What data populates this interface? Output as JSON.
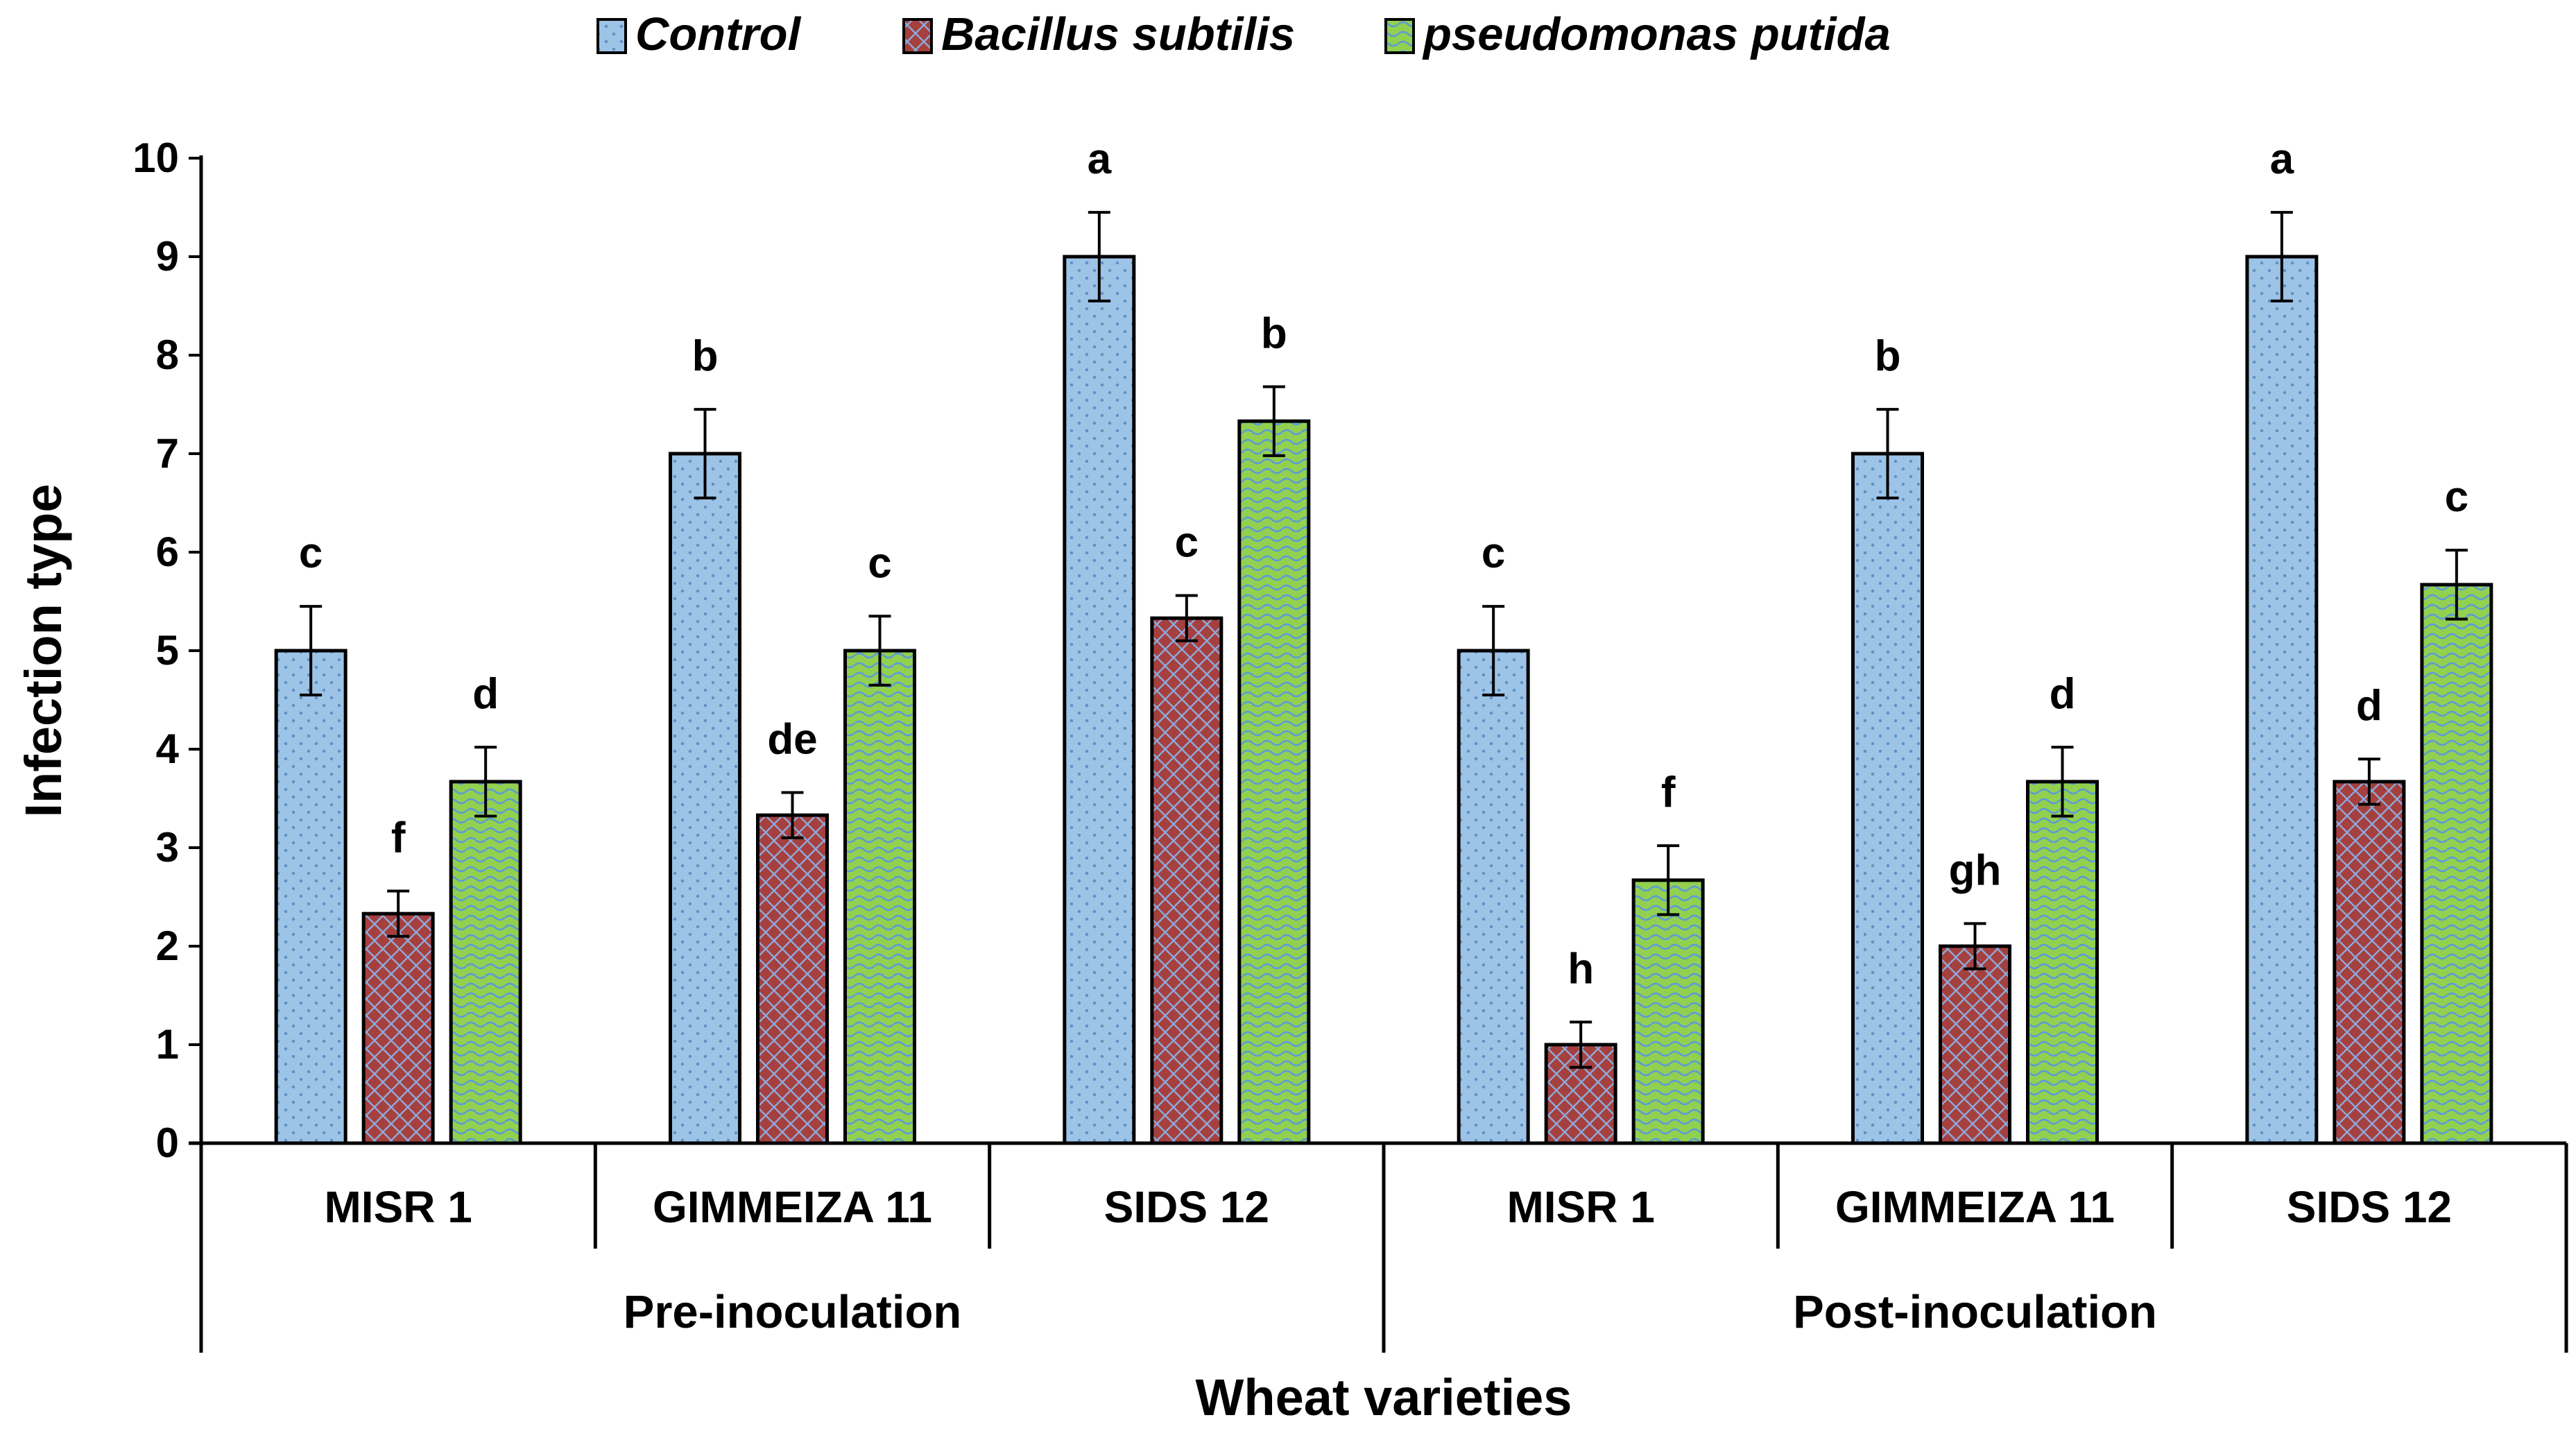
{
  "chart_data": {
    "type": "bar",
    "title": "",
    "xlabel": "Wheat varieties",
    "ylabel": "Infection type",
    "ylim": [
      0,
      10
    ],
    "yticks": [
      0,
      1,
      2,
      3,
      4,
      5,
      6,
      7,
      8,
      9,
      10
    ],
    "grid": false,
    "legend_position": "top",
    "groups": [
      {
        "label": "Pre-inoculation",
        "categories": [
          "MISR 1",
          "GIMMEIZA 11",
          "SIDS 12"
        ]
      },
      {
        "label": "Post-inoculation",
        "categories": [
          "MISR 1",
          "GIMMEIZA 11",
          "SIDS 12"
        ]
      }
    ],
    "categories": [
      "MISR 1",
      "GIMMEIZA 11",
      "SIDS 12",
      "MISR 1",
      "GIMMEIZA 11",
      "SIDS 12"
    ],
    "series": [
      {
        "name": "Control",
        "color": "#9DC3E6",
        "pattern": "dots",
        "values": [
          5,
          7,
          9,
          5,
          7,
          9
        ],
        "errors": [
          0.45,
          0.45,
          0.45,
          0.45,
          0.45,
          0.45
        ],
        "labels": [
          "c",
          "b",
          "a",
          "c",
          "b",
          "a"
        ]
      },
      {
        "name": "Bacillus subtilis",
        "color": "#A5403E",
        "pattern": "crosshatch",
        "values": [
          2.33,
          3.33,
          5.33,
          1.0,
          2.0,
          3.67
        ],
        "errors": [
          0.23,
          0.23,
          0.23,
          0.23,
          0.23,
          0.23
        ],
        "labels": [
          "f",
          "de",
          "c",
          "h",
          "gh",
          "d"
        ]
      },
      {
        "name": "pseudomonas putida",
        "color": "#92D050",
        "pattern": "waves",
        "values": [
          3.67,
          5.0,
          7.33,
          2.67,
          3.67,
          5.67
        ],
        "errors": [
          0.35,
          0.35,
          0.35,
          0.35,
          0.35,
          0.35
        ],
        "labels": [
          "d",
          "c",
          "b",
          "f",
          "d",
          "c"
        ]
      }
    ]
  }
}
